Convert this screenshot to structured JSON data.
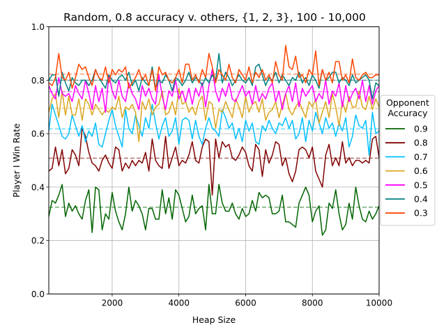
{
  "chart_data": {
    "type": "line",
    "title": "Random, 0.8 accuracy v. others, {1, 2, 3}, 100 - 10,000",
    "xlabel": "Heap Size",
    "ylabel": "Player I Win Rate",
    "xlim": [
      100,
      10000
    ],
    "ylim": [
      0.0,
      1.0
    ],
    "xticks": [
      2000,
      4000,
      6000,
      8000,
      10000
    ],
    "xtick_labels": [
      "2000",
      "4000",
      "6000",
      "8000",
      "10000"
    ],
    "yticks": [
      0.0,
      0.2,
      0.4,
      0.6,
      0.8,
      1.0
    ],
    "ytick_labels": [
      "0.0",
      "0.2",
      "0.4",
      "0.6",
      "0.8",
      "1.0"
    ],
    "grid": true,
    "legend": {
      "title": "Opponent\nAccuracy",
      "placement": "right"
    },
    "x_start": 100,
    "x_step": 100,
    "series": [
      {
        "name": "0.9",
        "color": "#006400",
        "mean": 0.325,
        "values": [
          0.29,
          0.35,
          0.34,
          0.37,
          0.41,
          0.29,
          0.34,
          0.31,
          0.33,
          0.3,
          0.28,
          0.35,
          0.39,
          0.23,
          0.4,
          0.39,
          0.24,
          0.3,
          0.28,
          0.38,
          0.31,
          0.27,
          0.24,
          0.3,
          0.4,
          0.31,
          0.35,
          0.33,
          0.3,
          0.24,
          0.32,
          0.32,
          0.28,
          0.28,
          0.39,
          0.3,
          0.36,
          0.28,
          0.39,
          0.37,
          0.32,
          0.27,
          0.29,
          0.37,
          0.3,
          0.32,
          0.33,
          0.24,
          0.41,
          0.3,
          0.3,
          0.41,
          0.34,
          0.31,
          0.31,
          0.34,
          0.3,
          0.28,
          0.32,
          0.29,
          0.3,
          0.35,
          0.31,
          0.38,
          0.36,
          0.37,
          0.36,
          0.3,
          0.3,
          0.31,
          0.37,
          0.27,
          0.27,
          0.26,
          0.25,
          0.34,
          0.37,
          0.4,
          0.37,
          0.27,
          0.31,
          0.33,
          0.22,
          0.24,
          0.34,
          0.32,
          0.39,
          0.3,
          0.24,
          0.26,
          0.34,
          0.28,
          0.4,
          0.33,
          0.28,
          0.27,
          0.31,
          0.28,
          0.3,
          0.33
        ]
      },
      {
        "name": "0.8",
        "color": "#800000",
        "mean": 0.508,
        "values": [
          0.46,
          0.47,
          0.55,
          0.48,
          0.54,
          0.45,
          0.47,
          0.54,
          0.52,
          0.48,
          0.62,
          0.59,
          0.53,
          0.49,
          0.48,
          0.46,
          0.5,
          0.52,
          0.49,
          0.47,
          0.55,
          0.54,
          0.46,
          0.49,
          0.47,
          0.5,
          0.48,
          0.5,
          0.49,
          0.53,
          0.46,
          0.58,
          0.5,
          0.48,
          0.47,
          0.59,
          0.47,
          0.51,
          0.55,
          0.48,
          0.5,
          0.49,
          0.52,
          0.57,
          0.5,
          0.49,
          0.55,
          0.58,
          0.57,
          0.37,
          0.58,
          0.51,
          0.57,
          0.55,
          0.56,
          0.51,
          0.5,
          0.52,
          0.55,
          0.53,
          0.48,
          0.46,
          0.56,
          0.54,
          0.44,
          0.54,
          0.49,
          0.52,
          0.57,
          0.56,
          0.48,
          0.51,
          0.45,
          0.42,
          0.46,
          0.54,
          0.55,
          0.54,
          0.51,
          0.55,
          0.46,
          0.43,
          0.4,
          0.52,
          0.56,
          0.48,
          0.51,
          0.48,
          0.57,
          0.49,
          0.51,
          0.48,
          0.5,
          0.5,
          0.49,
          0.5,
          0.49,
          0.58,
          0.59,
          0.51
        ]
      },
      {
        "name": "0.7",
        "color": "#00bfff",
        "mean": 0.618,
        "values": [
          0.61,
          0.71,
          0.67,
          0.63,
          0.59,
          0.58,
          0.6,
          0.67,
          0.63,
          0.59,
          0.63,
          0.57,
          0.61,
          0.59,
          0.64,
          0.56,
          0.55,
          0.6,
          0.65,
          0.69,
          0.63,
          0.59,
          0.55,
          0.69,
          0.62,
          0.6,
          0.67,
          0.63,
          0.59,
          0.66,
          0.62,
          0.71,
          0.64,
          0.58,
          0.63,
          0.66,
          0.59,
          0.61,
          0.66,
          0.56,
          0.65,
          0.66,
          0.65,
          0.58,
          0.65,
          0.59,
          0.56,
          0.62,
          0.66,
          0.62,
          0.61,
          0.59,
          0.69,
          0.66,
          0.62,
          0.64,
          0.58,
          0.62,
          0.57,
          0.65,
          0.61,
          0.64,
          0.57,
          0.56,
          0.63,
          0.61,
          0.65,
          0.62,
          0.6,
          0.64,
          0.63,
          0.66,
          0.62,
          0.65,
          0.58,
          0.6,
          0.66,
          0.57,
          0.65,
          0.61,
          0.68,
          0.64,
          0.6,
          0.66,
          0.62,
          0.64,
          0.59,
          0.64,
          0.61,
          0.66,
          0.55,
          0.59,
          0.67,
          0.63,
          0.62,
          0.65,
          0.52,
          0.68,
          0.6,
          0.61
        ]
      },
      {
        "name": "0.6",
        "color": "#daa520",
        "mean": 0.695,
        "values": [
          0.68,
          0.73,
          0.75,
          0.66,
          0.76,
          0.67,
          0.74,
          0.67,
          0.67,
          0.73,
          0.65,
          0.73,
          0.71,
          0.67,
          0.71,
          0.69,
          0.67,
          0.69,
          0.68,
          0.7,
          0.69,
          0.74,
          0.66,
          0.7,
          0.69,
          0.71,
          0.68,
          0.57,
          0.72,
          0.69,
          0.73,
          0.67,
          0.7,
          0.71,
          0.76,
          0.67,
          0.68,
          0.72,
          0.67,
          0.77,
          0.71,
          0.72,
          0.68,
          0.7,
          0.67,
          0.72,
          0.74,
          0.65,
          0.72,
          0.71,
          0.62,
          0.69,
          0.68,
          0.72,
          0.69,
          0.66,
          0.73,
          0.7,
          0.66,
          0.74,
          0.68,
          0.71,
          0.72,
          0.68,
          0.73,
          0.65,
          0.68,
          0.69,
          0.72,
          0.66,
          0.71,
          0.75,
          0.69,
          0.67,
          0.7,
          0.72,
          0.69,
          0.66,
          0.72,
          0.7,
          0.73,
          0.64,
          0.68,
          0.72,
          0.66,
          0.75,
          0.7,
          0.63,
          0.72,
          0.68,
          0.74,
          0.7,
          0.7,
          0.76,
          0.7,
          0.69,
          0.74,
          0.69,
          0.73,
          0.7
        ]
      },
      {
        "name": "0.5",
        "color": "#ff00ff",
        "mean": 0.757,
        "values": [
          0.78,
          0.75,
          0.73,
          0.81,
          0.75,
          0.74,
          0.75,
          0.72,
          0.78,
          0.75,
          0.73,
          0.8,
          0.75,
          0.69,
          0.78,
          0.72,
          0.77,
          0.68,
          0.82,
          0.76,
          0.73,
          0.8,
          0.74,
          0.72,
          0.79,
          0.75,
          0.73,
          0.69,
          0.78,
          0.74,
          0.77,
          0.73,
          0.71,
          0.82,
          0.74,
          0.69,
          0.76,
          0.74,
          0.8,
          0.73,
          0.76,
          0.72,
          0.77,
          0.71,
          0.77,
          0.74,
          0.79,
          0.7,
          0.78,
          0.84,
          0.76,
          0.72,
          0.77,
          0.74,
          0.79,
          0.73,
          0.72,
          0.75,
          0.78,
          0.74,
          0.76,
          0.71,
          0.78,
          0.72,
          0.75,
          0.73,
          0.77,
          0.79,
          0.72,
          0.76,
          0.69,
          0.75,
          0.78,
          0.72,
          0.79,
          0.7,
          0.77,
          0.74,
          0.76,
          0.78,
          0.72,
          0.75,
          0.73,
          0.8,
          0.71,
          0.76,
          0.74,
          0.79,
          0.7,
          0.78,
          0.72,
          0.75,
          0.77,
          0.73,
          0.8,
          0.72,
          0.78,
          0.71,
          0.76,
          0.78
        ]
      },
      {
        "name": "0.4",
        "color": "#008080",
        "mean": 0.8,
        "values": [
          0.8,
          0.82,
          0.82,
          0.74,
          0.83,
          0.79,
          0.76,
          0.81,
          0.79,
          0.78,
          0.8,
          0.8,
          0.78,
          0.8,
          0.84,
          0.81,
          0.79,
          0.77,
          0.82,
          0.8,
          0.79,
          0.81,
          0.82,
          0.8,
          0.83,
          0.78,
          0.8,
          0.76,
          0.81,
          0.79,
          0.78,
          0.85,
          0.77,
          0.8,
          0.79,
          0.82,
          0.8,
          0.76,
          0.81,
          0.8,
          0.78,
          0.8,
          0.83,
          0.79,
          0.81,
          0.8,
          0.78,
          0.81,
          0.79,
          0.82,
          0.8,
          0.9,
          0.79,
          0.83,
          0.81,
          0.78,
          0.8,
          0.82,
          0.8,
          0.79,
          0.81,
          0.78,
          0.85,
          0.86,
          0.82,
          0.78,
          0.81,
          0.8,
          0.83,
          0.79,
          0.82,
          0.8,
          0.78,
          0.81,
          0.8,
          0.83,
          0.79,
          0.81,
          0.78,
          0.82,
          0.8,
          0.77,
          0.84,
          0.8,
          0.81,
          0.83,
          0.83,
          0.79,
          0.81,
          0.8,
          0.78,
          0.82,
          0.79,
          0.8,
          0.81,
          0.82,
          0.8,
          0.73,
          0.79,
          0.78
        ]
      },
      {
        "name": "0.3",
        "color": "#ff4500",
        "mean": 0.823,
        "values": [
          0.79,
          0.78,
          0.81,
          0.9,
          0.81,
          0.8,
          0.83,
          0.77,
          0.81,
          0.86,
          0.84,
          0.85,
          0.81,
          0.78,
          0.84,
          0.81,
          0.8,
          0.85,
          0.79,
          0.84,
          0.82,
          0.84,
          0.83,
          0.85,
          0.77,
          0.79,
          0.81,
          0.84,
          0.8,
          0.82,
          0.78,
          0.84,
          0.76,
          0.85,
          0.82,
          0.83,
          0.8,
          0.79,
          0.81,
          0.84,
          0.79,
          0.86,
          0.86,
          0.8,
          0.82,
          0.79,
          0.84,
          0.81,
          0.9,
          0.85,
          0.79,
          0.84,
          0.82,
          0.8,
          0.86,
          0.81,
          0.79,
          0.84,
          0.82,
          0.8,
          0.85,
          0.79,
          0.83,
          0.81,
          0.84,
          0.8,
          0.82,
          0.79,
          0.87,
          0.82,
          0.8,
          0.93,
          0.85,
          0.84,
          0.89,
          0.81,
          0.82,
          0.79,
          0.84,
          0.82,
          0.91,
          0.78,
          0.84,
          0.8,
          0.83,
          0.79,
          0.87,
          0.87,
          0.8,
          0.82,
          0.79,
          0.88,
          0.81,
          0.8,
          0.82,
          0.83,
          0.81,
          0.81,
          0.82,
          0.82
        ]
      }
    ]
  }
}
